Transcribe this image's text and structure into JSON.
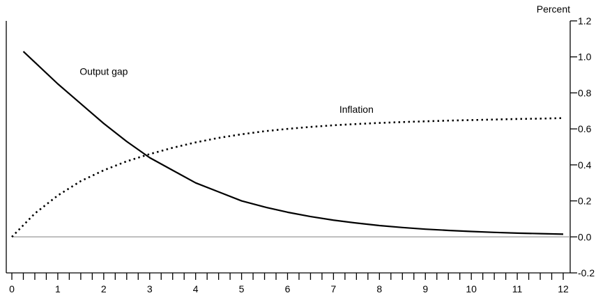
{
  "chart_data": {
    "type": "line",
    "ylabel": "Percent",
    "xlim": [
      0,
      12
    ],
    "ylim": [
      -0.2,
      1.2
    ],
    "x_ticks": [
      0,
      1,
      2,
      3,
      4,
      5,
      6,
      7,
      8,
      9,
      10,
      11,
      12
    ],
    "x_minor_step": 0.25,
    "y_ticks": [
      {
        "value": -0.2,
        "label": "-0.2"
      },
      {
        "value": 0.0,
        "label": "0.0"
      },
      {
        "value": 0.2,
        "label": "0.2"
      },
      {
        "value": 0.4,
        "label": "0.4"
      },
      {
        "value": 0.6,
        "label": "0.6"
      },
      {
        "value": 0.8,
        "label": "0.8"
      },
      {
        "value": 1.0,
        "label": "1.0"
      },
      {
        "value": 1.2,
        "label": "1.2"
      }
    ],
    "zero_line": true,
    "grid": false,
    "series": [
      {
        "name": "Output gap",
        "style": "solid",
        "color": "#000000",
        "x": [
          0.25,
          0.5,
          1,
          1.5,
          2,
          2.5,
          3,
          3.5,
          4,
          4.5,
          5,
          5.5,
          6,
          6.5,
          7,
          7.5,
          8,
          8.5,
          9,
          9.5,
          10,
          10.5,
          11,
          11.5,
          12
        ],
        "y": [
          1.03,
          0.97,
          0.85,
          0.74,
          0.63,
          0.53,
          0.44,
          0.37,
          0.3,
          0.25,
          0.2,
          0.166,
          0.137,
          0.113,
          0.093,
          0.077,
          0.063,
          0.052,
          0.043,
          0.036,
          0.03,
          0.025,
          0.021,
          0.018,
          0.015
        ]
      },
      {
        "name": "Inflation",
        "style": "dotted",
        "color": "#000000",
        "x": [
          0,
          0.5,
          1,
          1.5,
          2,
          2.5,
          3,
          3.5,
          4,
          4.5,
          5,
          5.5,
          6,
          6.5,
          7,
          7.5,
          8,
          8.5,
          9,
          9.5,
          10,
          10.5,
          11,
          11.5,
          12
        ],
        "y": [
          0.0,
          0.13,
          0.23,
          0.31,
          0.37,
          0.42,
          0.46,
          0.495,
          0.525,
          0.55,
          0.57,
          0.587,
          0.6,
          0.611,
          0.62,
          0.627,
          0.633,
          0.638,
          0.642,
          0.646,
          0.649,
          0.652,
          0.655,
          0.657,
          0.66
        ]
      }
    ],
    "annotations": [
      {
        "text": "Output gap",
        "series": "Output gap",
        "x": 2.0,
        "y": 0.9
      },
      {
        "text": "Inflation",
        "series": "Inflation",
        "x": 7.5,
        "y": 0.69
      }
    ],
    "zero_line_color": "#999999"
  }
}
